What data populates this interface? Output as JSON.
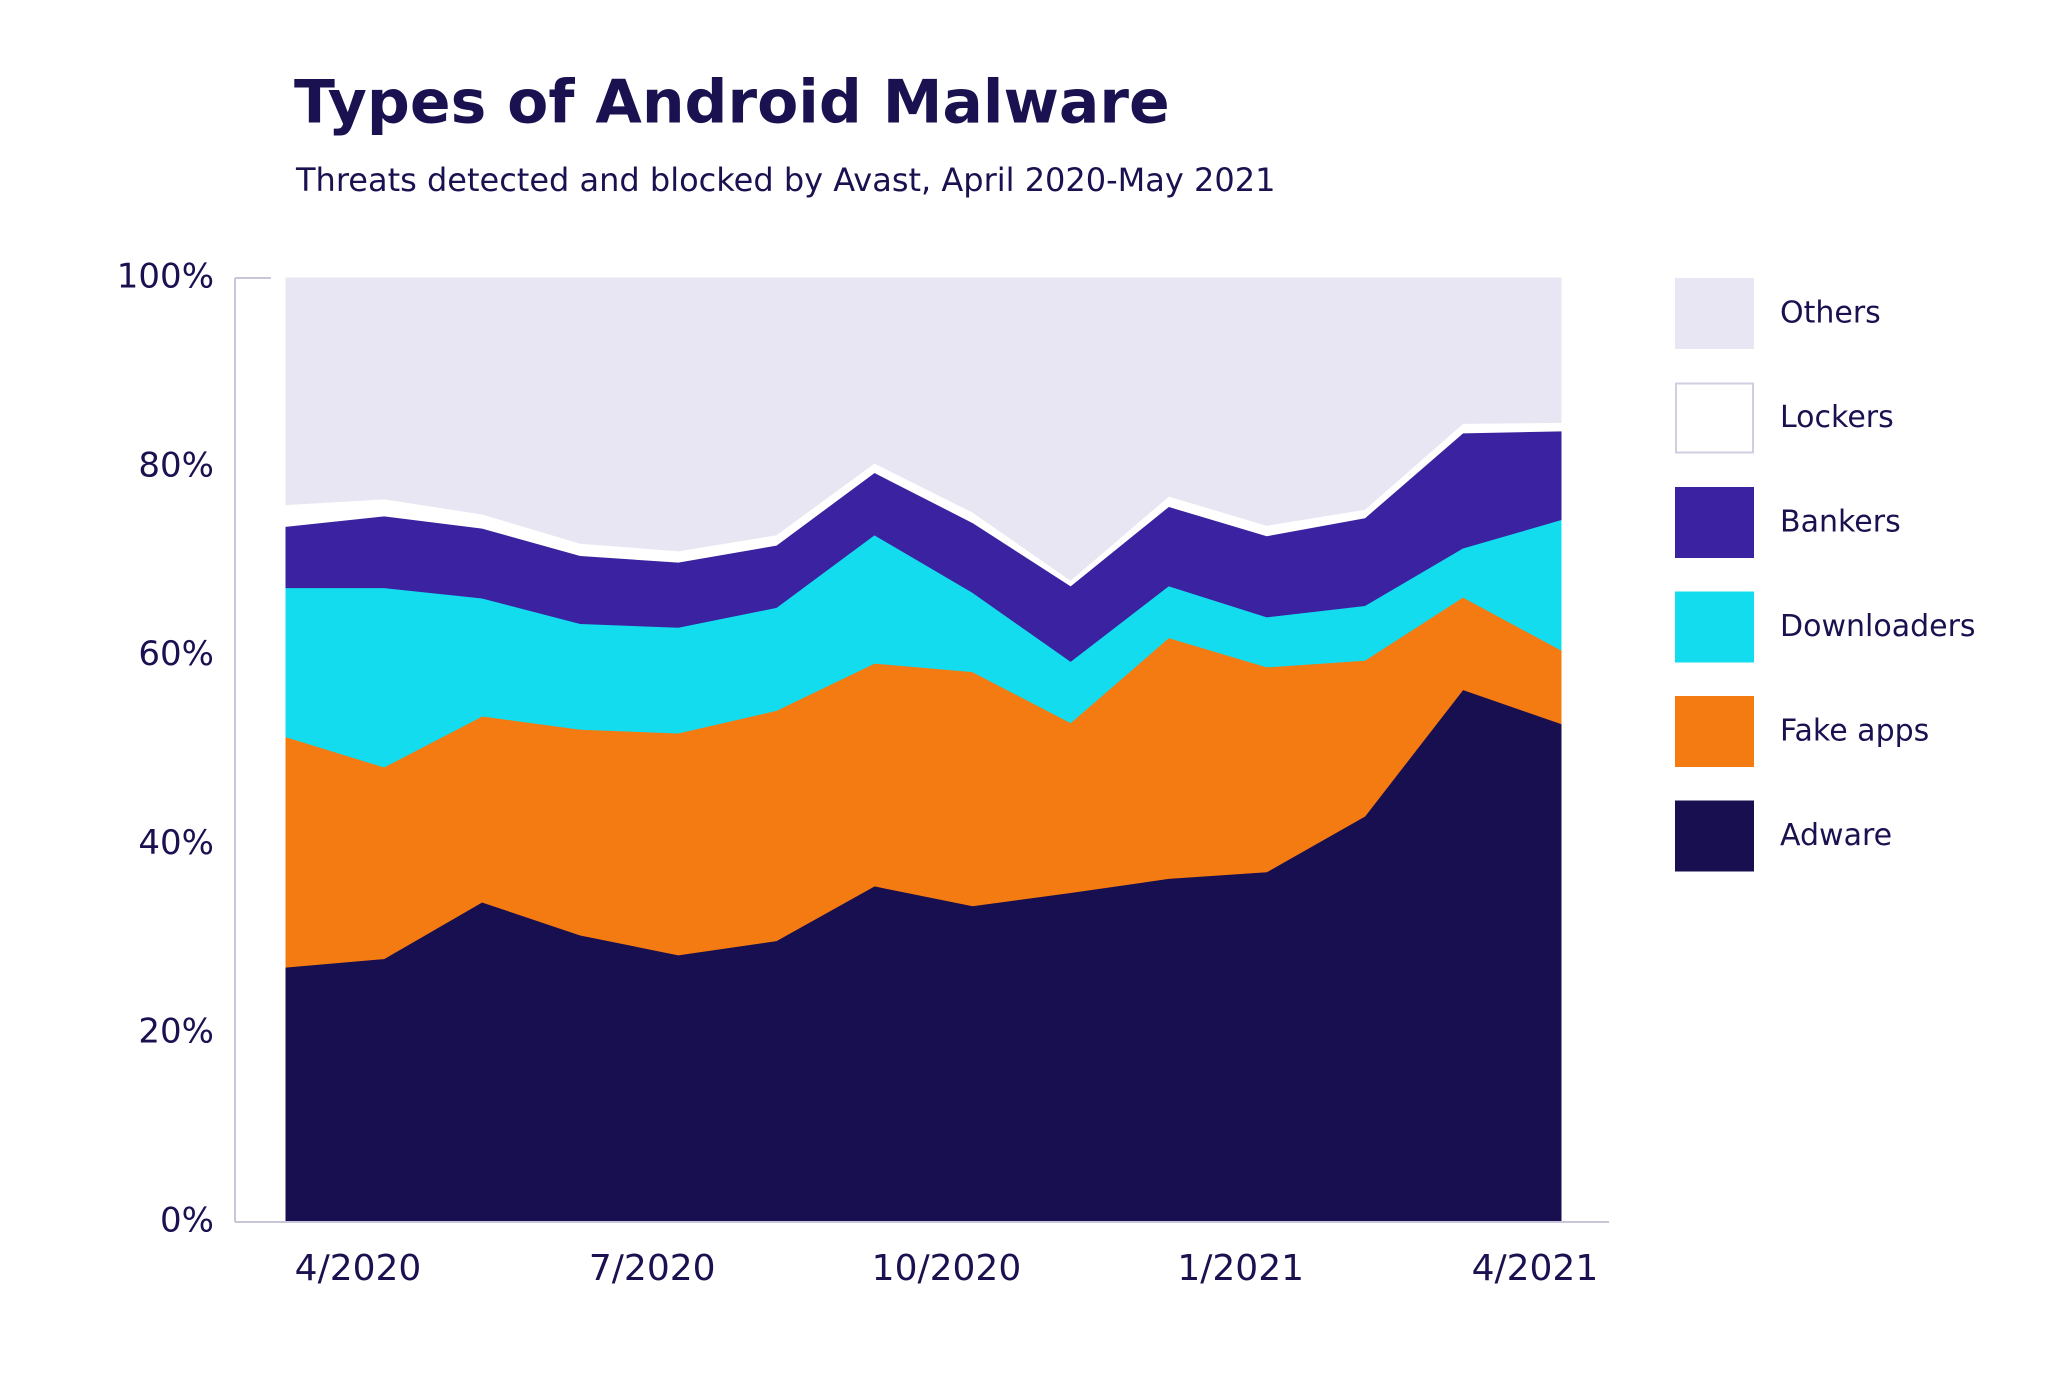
{
  "chart_data": {
    "type": "stacked_area",
    "title": "Types of Android Malware",
    "subtitle": "Threats detected and blocked by Avast, April 2020-May 2021",
    "categories": [
      "4/2020",
      null,
      null,
      "7/2020",
      null,
      null,
      "10/2020",
      null,
      null,
      "1/2021",
      null,
      null,
      "4/2021",
      null
    ],
    "series": [
      {
        "name": "Adware",
        "color": "#170f4f",
        "values": [
          27.0,
          27.9,
          33.9,
          30.4,
          28.3,
          29.8,
          35.6,
          33.5,
          34.9,
          36.4,
          37.1,
          43.0,
          56.4,
          52.8
        ]
      },
      {
        "name": "Fake apps",
        "color": "#f47a12",
        "values": [
          24.4,
          20.3,
          19.7,
          21.8,
          23.5,
          24.4,
          23.6,
          24.8,
          18.0,
          25.5,
          21.7,
          16.5,
          9.8,
          7.8
        ]
      },
      {
        "name": "Downloaders",
        "color": "#14dcef",
        "values": [
          15.8,
          19.0,
          12.5,
          11.2,
          11.2,
          10.9,
          13.6,
          8.4,
          6.5,
          5.5,
          5.3,
          5.8,
          5.2,
          13.8
        ]
      },
      {
        "name": "Bankers",
        "color": "#3a22a0",
        "values": [
          6.5,
          7.6,
          7.4,
          7.2,
          6.9,
          6.6,
          6.6,
          7.4,
          8.0,
          8.4,
          8.6,
          9.3,
          12.2,
          9.4
        ]
      },
      {
        "name": "Lockers",
        "color": "#ffffff",
        "values": [
          2.3,
          1.8,
          1.5,
          1.3,
          1.2,
          1.1,
          1.0,
          1.1,
          0.6,
          1.1,
          1.1,
          0.9,
          1.0,
          0.9
        ]
      },
      {
        "name": "Others",
        "color": "#e8e6f2",
        "values": [
          24.0,
          23.4,
          25.0,
          28.1,
          28.9,
          27.2,
          19.6,
          24.8,
          32.0,
          23.1,
          26.2,
          24.5,
          15.4,
          15.3
        ]
      }
    ],
    "ylim": [
      0,
      100
    ],
    "yticks": [
      {
        "value": 0,
        "label": "0%"
      },
      {
        "value": 20,
        "label": "20%"
      },
      {
        "value": 40,
        "label": "40%"
      },
      {
        "value": 60,
        "label": "60%"
      },
      {
        "value": 80,
        "label": "80%"
      },
      {
        "value": 100,
        "label": "100%"
      }
    ],
    "grid": false,
    "legend": "right"
  }
}
